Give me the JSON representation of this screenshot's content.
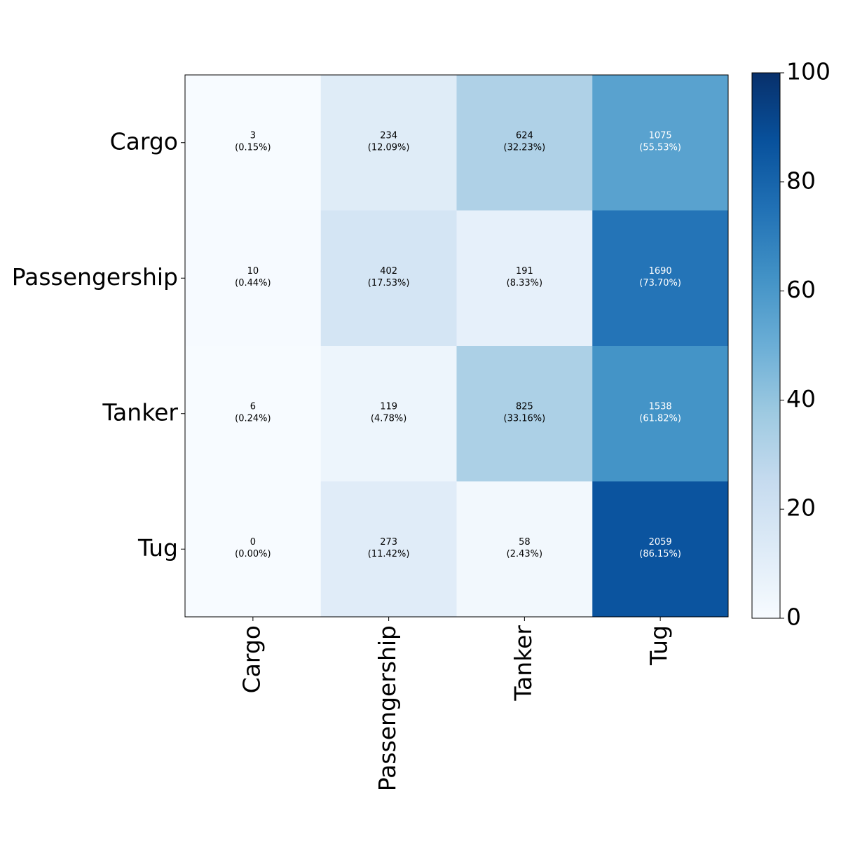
{
  "chart_data": {
    "type": "heatmap",
    "title": "",
    "xlabel": "",
    "ylabel": "",
    "row_labels": [
      "Cargo",
      "Passengership",
      "Tanker",
      "Tug"
    ],
    "col_labels": [
      "Cargo",
      "Passengership",
      "Tanker",
      "Tug"
    ],
    "counts": [
      [
        3,
        234,
        624,
        1075
      ],
      [
        10,
        402,
        191,
        1690
      ],
      [
        6,
        119,
        825,
        1538
      ],
      [
        0,
        273,
        58,
        2059
      ]
    ],
    "percentages": [
      [
        0.15,
        12.09,
        32.23,
        55.53
      ],
      [
        0.44,
        17.53,
        8.33,
        73.7
      ],
      [
        0.24,
        4.78,
        33.16,
        61.82
      ],
      [
        0.0,
        11.42,
        2.43,
        86.15
      ]
    ],
    "cell_labels": [
      [
        [
          "3",
          "(0.15%)"
        ],
        [
          "234",
          "(12.09%)"
        ],
        [
          "624",
          "(32.23%)"
        ],
        [
          "1075",
          "(55.53%)"
        ]
      ],
      [
        [
          "10",
          "(0.44%)"
        ],
        [
          "402",
          "(17.53%)"
        ],
        [
          "191",
          "(8.33%)"
        ],
        [
          "1690",
          "(73.70%)"
        ]
      ],
      [
        [
          "6",
          "(0.24%)"
        ],
        [
          "119",
          "(4.78%)"
        ],
        [
          "825",
          "(33.16%)"
        ],
        [
          "1538",
          "(61.82%)"
        ]
      ],
      [
        [
          "0",
          "(0.00%)"
        ],
        [
          "273",
          "(11.42%)"
        ],
        [
          "58",
          "(2.43%)"
        ],
        [
          "2059",
          "(86.15%)"
        ]
      ]
    ],
    "colorbar": {
      "range": [
        0,
        100
      ],
      "ticks": [
        0,
        20,
        40,
        60,
        80,
        100
      ],
      "tick_labels": [
        "0",
        "20",
        "40",
        "60",
        "80",
        "100"
      ]
    },
    "colormap": "Blues",
    "grid": false,
    "legend": "colorbar-right"
  }
}
